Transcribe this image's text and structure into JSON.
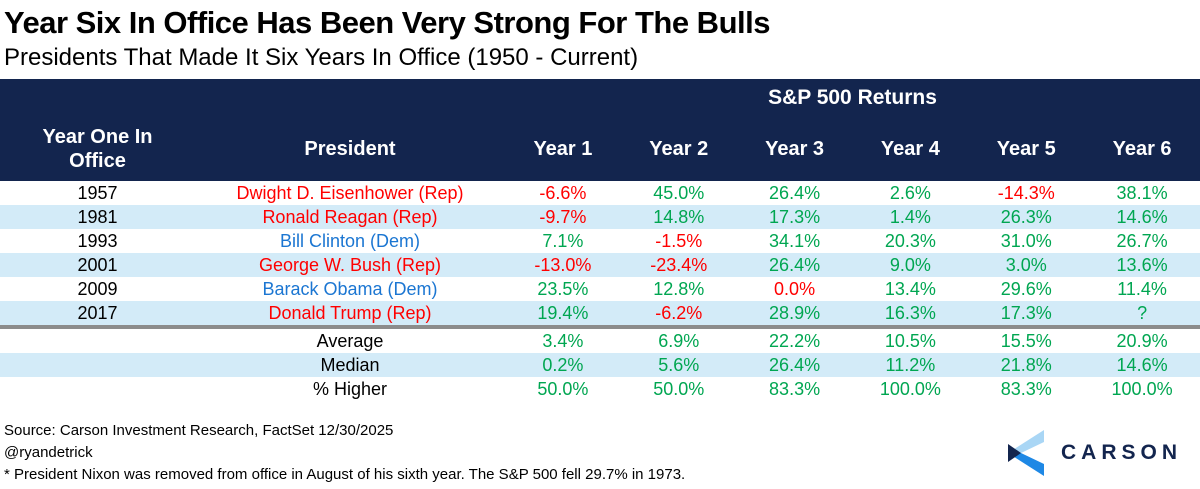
{
  "header": {
    "title": "Year Six In Office Has Been Very Strong For The Bulls",
    "subtitle": "Presidents That Made It Six Years In Office (1950 - Current)"
  },
  "table": {
    "span_header": "S&P 500 Returns",
    "col1_header_lines": [
      "Year One In",
      "Office"
    ],
    "col2_header": "President",
    "year_headers": [
      "Year 1",
      "Year 2",
      "Year 3",
      "Year 4",
      "Year 5",
      "Year 6"
    ],
    "rows": [
      {
        "year": "1957",
        "president": "Dwight D. Eisenhower (Rep)",
        "party": "rep",
        "values": [
          "-6.6%",
          "45.0%",
          "26.4%",
          "2.6%",
          "-14.3%",
          "38.1%"
        ],
        "value_classes": [
          "neg",
          "pos",
          "pos",
          "pos",
          "neg",
          "pos"
        ]
      },
      {
        "year": "1981",
        "president": "Ronald Reagan (Rep)",
        "party": "rep",
        "values": [
          "-9.7%",
          "14.8%",
          "17.3%",
          "1.4%",
          "26.3%",
          "14.6%"
        ],
        "value_classes": [
          "neg",
          "pos",
          "pos",
          "pos",
          "pos",
          "pos"
        ]
      },
      {
        "year": "1993",
        "president": "Bill Clinton (Dem)",
        "party": "dem",
        "values": [
          "7.1%",
          "-1.5%",
          "34.1%",
          "20.3%",
          "31.0%",
          "26.7%"
        ],
        "value_classes": [
          "pos",
          "neg",
          "pos",
          "pos",
          "pos",
          "pos"
        ]
      },
      {
        "year": "2001",
        "president": "George W. Bush (Rep)",
        "party": "rep",
        "values": [
          "-13.0%",
          "-23.4%",
          "26.4%",
          "9.0%",
          "3.0%",
          "13.6%"
        ],
        "value_classes": [
          "neg",
          "neg",
          "pos",
          "pos",
          "pos",
          "pos"
        ]
      },
      {
        "year": "2009",
        "president": "Barack Obama (Dem)",
        "party": "dem",
        "values": [
          "23.5%",
          "12.8%",
          "0.0%",
          "13.4%",
          "29.6%",
          "11.4%"
        ],
        "value_classes": [
          "pos",
          "pos",
          "neg",
          "pos",
          "pos",
          "pos"
        ]
      },
      {
        "year": "2017",
        "president": "Donald Trump (Rep)",
        "party": "rep",
        "values": [
          "19.4%",
          "-6.2%",
          "28.9%",
          "16.3%",
          "17.3%",
          "?"
        ],
        "value_classes": [
          "pos",
          "neg",
          "pos",
          "pos",
          "pos",
          "pos"
        ]
      }
    ],
    "summary_rows": [
      {
        "label": "Average",
        "values": [
          "3.4%",
          "6.9%",
          "22.2%",
          "10.5%",
          "15.5%",
          "20.9%"
        ],
        "value_classes": [
          "pos",
          "pos",
          "pos",
          "pos",
          "pos",
          "pos"
        ]
      },
      {
        "label": "Median",
        "values": [
          "0.2%",
          "5.6%",
          "26.4%",
          "11.2%",
          "21.8%",
          "14.6%"
        ],
        "value_classes": [
          "pos",
          "pos",
          "pos",
          "pos",
          "pos",
          "pos"
        ]
      },
      {
        "label": "% Higher",
        "values": [
          "50.0%",
          "50.0%",
          "83.3%",
          "100.0%",
          "83.3%",
          "100.0%"
        ],
        "value_classes": [
          "pos",
          "pos",
          "pos",
          "pos",
          "pos",
          "pos"
        ]
      }
    ]
  },
  "footer": {
    "source": "Source: Carson Investment Research, FactSet 12/30/2025",
    "handle": "@ryandetrick",
    "note": "* President Nixon was removed from office in August of his sixth year. The S&P 500 fell 29.7% in 1973.",
    "logo_text": "CARSON"
  },
  "colors": {
    "header_bg": "#13254E",
    "row_alt_bg": "#D3EBF8",
    "positive": "#00A651",
    "negative": "#FF0000",
    "dem_blue": "#1B76D2",
    "divider_gray": "#8C8C8C",
    "logo_light_blue": "#A9D6F5",
    "logo_blue": "#1E88E5"
  },
  "chart_data": {
    "type": "table",
    "title": "Year Six In Office Has Been Very Strong For The Bulls",
    "subtitle": "Presidents That Made It Six Years In Office (1950 - Current)",
    "group_header": "S&P 500 Returns",
    "columns": [
      "Year One In Office",
      "President",
      "Year 1",
      "Year 2",
      "Year 3",
      "Year 4",
      "Year 5",
      "Year 6"
    ],
    "rows": [
      [
        1957,
        "Dwight D. Eisenhower (Rep)",
        -6.6,
        45.0,
        26.4,
        2.6,
        -14.3,
        38.1
      ],
      [
        1981,
        "Ronald Reagan (Rep)",
        -9.7,
        14.8,
        17.3,
        1.4,
        26.3,
        14.6
      ],
      [
        1993,
        "Bill Clinton (Dem)",
        7.1,
        -1.5,
        34.1,
        20.3,
        31.0,
        26.7
      ],
      [
        2001,
        "George W. Bush (Rep)",
        -13.0,
        -23.4,
        26.4,
        9.0,
        3.0,
        13.6
      ],
      [
        2009,
        "Barack Obama (Dem)",
        23.5,
        12.8,
        0.0,
        13.4,
        29.6,
        11.4
      ],
      [
        2017,
        "Donald Trump (Rep)",
        19.4,
        -6.2,
        28.9,
        16.3,
        17.3,
        "?"
      ]
    ],
    "summary": {
      "Average": [
        3.4,
        6.9,
        22.2,
        10.5,
        15.5,
        20.9
      ],
      "Median": [
        0.2,
        5.6,
        26.4,
        11.2,
        21.8,
        14.6
      ],
      "% Higher": [
        50.0,
        50.0,
        83.3,
        100.0,
        83.3,
        100.0
      ]
    },
    "units": "percent"
  }
}
